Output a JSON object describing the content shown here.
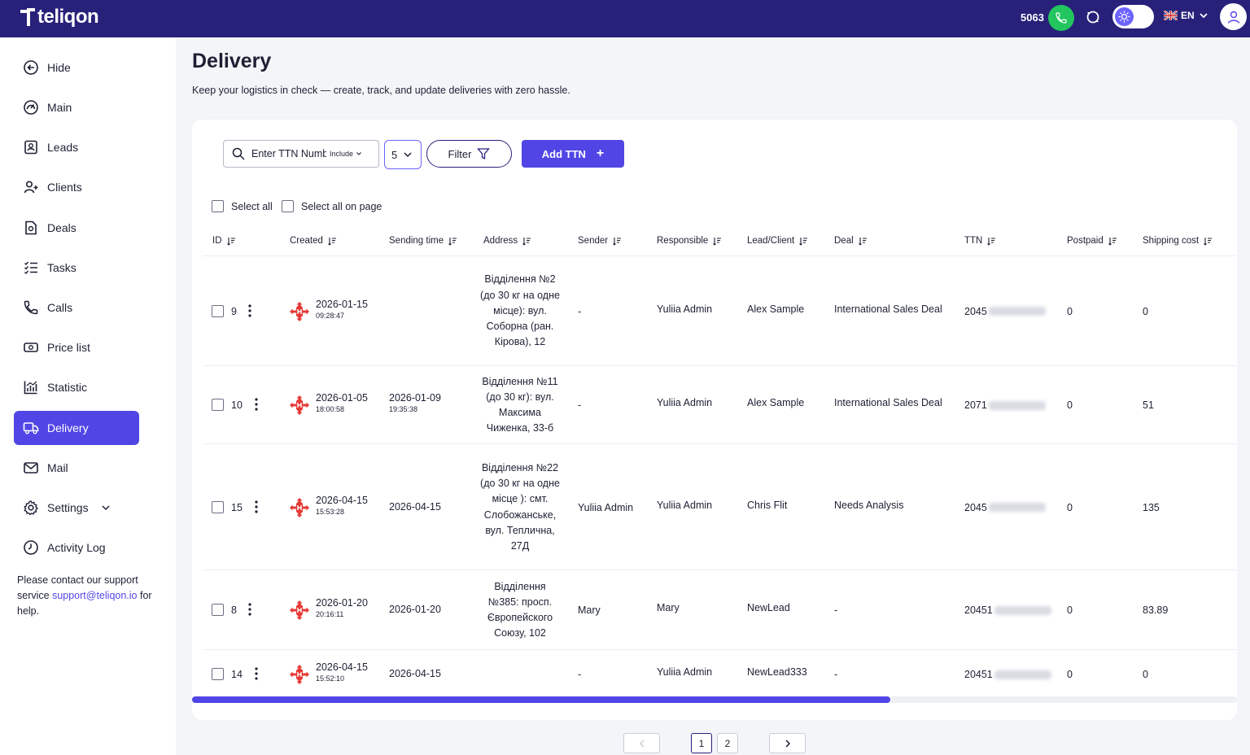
{
  "header": {
    "logo_text": "teliqon",
    "agent_number": "5063",
    "language": "EN"
  },
  "sidebar": {
    "items": [
      {
        "label": "Hide",
        "icon": "arrow-left-circle-icon"
      },
      {
        "label": "Main",
        "icon": "gauge-icon"
      },
      {
        "label": "Leads",
        "icon": "lead-card-icon"
      },
      {
        "label": "Clients",
        "icon": "user-plus-icon"
      },
      {
        "label": "Deals",
        "icon": "deal-doc-icon"
      },
      {
        "label": "Tasks",
        "icon": "task-list-icon"
      },
      {
        "label": "Calls",
        "icon": "phone-icon"
      },
      {
        "label": "Price list",
        "icon": "money-icon"
      },
      {
        "label": "Statistic",
        "icon": "chart-icon"
      },
      {
        "label": "Delivery",
        "icon": "truck-icon",
        "active": true
      },
      {
        "label": "Mail",
        "icon": "mail-icon"
      },
      {
        "label": "Settings",
        "icon": "gear-icon"
      },
      {
        "label": "Activity Log",
        "icon": "clock-icon"
      }
    ],
    "support_text_1": "Please contact our support service ",
    "support_email": "support@teliqon.io",
    "support_text_2": " for help."
  },
  "page": {
    "title": "Delivery",
    "subtitle": "Keep your logistics in check — create, track, and update deliveries with zero hassle."
  },
  "toolbar": {
    "search_placeholder": "Enter TTN Number",
    "include_label": "Include",
    "per_page": "5",
    "filter_label": "Filter",
    "add_label": "Add TTN"
  },
  "selection": {
    "select_all": "Select all",
    "select_page": "Select all on page"
  },
  "table": {
    "columns": [
      "ID",
      "Created",
      "Sending time",
      "Address",
      "Sender",
      "Responsible",
      "Lead/Client",
      "Deal",
      "TTN",
      "Postpaid",
      "Shipping cost"
    ],
    "rows": [
      {
        "id": "9",
        "created_date": "2026-01-15",
        "created_time": "09:28:47",
        "sending_date": "",
        "sending_time": "",
        "address": "Відділення №2 (до 30 кг на одне місце): вул. Соборна (ран. Кірова), 12",
        "sender": "-",
        "responsible": "Yuliia Admin",
        "lead": "Alex Sample",
        "deal": "International Sales Deal",
        "ttn": "2045",
        "postpaid": "0",
        "shipping": "0"
      },
      {
        "id": "10",
        "created_date": "2026-01-05",
        "created_time": "18:00:58",
        "sending_date": "2026-01-09",
        "sending_time": "19:35:38",
        "address": "Відділення №11 (до 30 кг): вул. Максима Чиженка, 33-б",
        "sender": "-",
        "responsible": "Yuliia Admin",
        "lead": "Alex Sample",
        "deal": "International Sales Deal",
        "ttn": "2071",
        "postpaid": "0",
        "shipping": "51"
      },
      {
        "id": "15",
        "created_date": "2026-04-15",
        "created_time": "15:53:28",
        "sending_date": "2026-04-15",
        "sending_time": "",
        "address": "Відділення №22 (до 30 кг на одне місце ): смт. Слобожанське, вул. Теплична, 27Д",
        "sender": "Yuliia Admin",
        "responsible": "Yuliia Admin",
        "lead": "Chris Flit",
        "deal": "Needs Analysis",
        "ttn": "2045",
        "postpaid": "0",
        "shipping": "135"
      },
      {
        "id": "8",
        "created_date": "2026-01-20",
        "created_time": "20:16:11",
        "sending_date": "2026-01-20",
        "sending_time": "",
        "address": "Відділення №385: просп. Європейского Союзу, 102",
        "sender": "Mary",
        "responsible": "Mary",
        "lead": "NewLead",
        "deal": "-",
        "ttn": "20451",
        "postpaid": "0",
        "shipping": "83.89"
      },
      {
        "id": "14",
        "created_date": "2026-04-15",
        "created_time": "15:52:10",
        "sending_date": "2026-04-15",
        "sending_time": "",
        "address": "",
        "sender": "-",
        "responsible": "Yuliia Admin",
        "lead": "NewLead333",
        "deal": "-",
        "ttn": "20451",
        "postpaid": "0",
        "shipping": "0"
      }
    ]
  },
  "pagination": {
    "pages": [
      "1",
      "2"
    ],
    "current": "1"
  },
  "colors": {
    "brand": "#27217a",
    "accent": "#5146e5",
    "call_green": "#22c55e",
    "np_red": "#e53935"
  }
}
